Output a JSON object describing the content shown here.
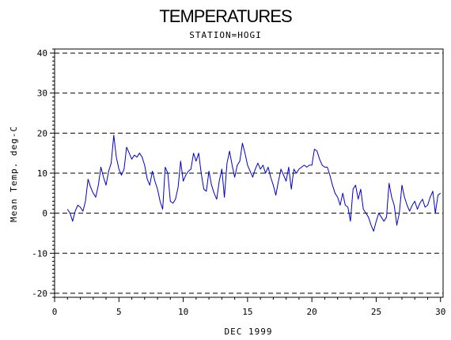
{
  "chart_data": {
    "type": "line",
    "title": "TEMPERATURES",
    "subtitle": "STATION=HOGI",
    "xlabel": "DEC 1999",
    "ylabel": "Mean Temp. deg-C",
    "xlim": [
      0,
      30.2
    ],
    "ylim": [
      -21,
      41
    ],
    "xticks": [
      0,
      5,
      10,
      15,
      20,
      25,
      30
    ],
    "yticks": [
      -20,
      -10,
      0,
      10,
      20,
      30,
      40
    ],
    "grid": "horizontal dashed at major y ticks",
    "colors": {
      "series": "#0000cc",
      "axis": "#000000",
      "grid": "#000000"
    },
    "series": [
      {
        "values": [
          [
            1.0,
            1.0
          ],
          [
            1.2,
            0.0
          ],
          [
            1.4,
            -2.0
          ],
          [
            1.6,
            0.5
          ],
          [
            1.8,
            2.0
          ],
          [
            2.0,
            1.5
          ],
          [
            2.2,
            0.5
          ],
          [
            2.4,
            3.0
          ],
          [
            2.6,
            8.5
          ],
          [
            2.8,
            6.5
          ],
          [
            3.0,
            5.0
          ],
          [
            3.2,
            4.0
          ],
          [
            3.4,
            7.0
          ],
          [
            3.6,
            11.5
          ],
          [
            3.8,
            9.0
          ],
          [
            4.0,
            7.0
          ],
          [
            4.2,
            10.5
          ],
          [
            4.4,
            12.5
          ],
          [
            4.6,
            19.5
          ],
          [
            4.8,
            14.0
          ],
          [
            5.0,
            11.0
          ],
          [
            5.2,
            9.5
          ],
          [
            5.4,
            11.0
          ],
          [
            5.6,
            16.5
          ],
          [
            5.8,
            15.0
          ],
          [
            6.0,
            13.5
          ],
          [
            6.2,
            14.5
          ],
          [
            6.4,
            14.0
          ],
          [
            6.6,
            15.0
          ],
          [
            6.8,
            14.0
          ],
          [
            7.0,
            12.0
          ],
          [
            7.2,
            8.5
          ],
          [
            7.4,
            7.0
          ],
          [
            7.6,
            10.5
          ],
          [
            7.8,
            8.0
          ],
          [
            8.0,
            6.0
          ],
          [
            8.2,
            3.0
          ],
          [
            8.4,
            1.0
          ],
          [
            8.6,
            11.5
          ],
          [
            8.8,
            10.0
          ],
          [
            9.0,
            3.0
          ],
          [
            9.2,
            2.5
          ],
          [
            9.4,
            3.5
          ],
          [
            9.6,
            6.5
          ],
          [
            9.8,
            13.0
          ],
          [
            10.0,
            8.0
          ],
          [
            10.2,
            9.5
          ],
          [
            10.4,
            10.5
          ],
          [
            10.6,
            11.0
          ],
          [
            10.8,
            15.0
          ],
          [
            11.0,
            13.0
          ],
          [
            11.2,
            15.0
          ],
          [
            11.4,
            10.0
          ],
          [
            11.6,
            6.0
          ],
          [
            11.8,
            5.5
          ],
          [
            12.0,
            10.5
          ],
          [
            12.2,
            7.0
          ],
          [
            12.4,
            5.0
          ],
          [
            12.6,
            3.5
          ],
          [
            12.8,
            8.0
          ],
          [
            13.0,
            11.0
          ],
          [
            13.2,
            4.0
          ],
          [
            13.4,
            12.5
          ],
          [
            13.6,
            15.5
          ],
          [
            13.8,
            12.0
          ],
          [
            14.0,
            9.0
          ],
          [
            14.2,
            12.0
          ],
          [
            14.4,
            13.0
          ],
          [
            14.6,
            17.5
          ],
          [
            14.8,
            15.0
          ],
          [
            15.0,
            12.0
          ],
          [
            15.2,
            10.5
          ],
          [
            15.4,
            9.0
          ],
          [
            15.6,
            11.0
          ],
          [
            15.8,
            12.5
          ],
          [
            16.0,
            11.0
          ],
          [
            16.2,
            12.0
          ],
          [
            16.4,
            10.0
          ],
          [
            16.6,
            11.5
          ],
          [
            16.8,
            9.0
          ],
          [
            17.0,
            7.0
          ],
          [
            17.2,
            4.5
          ],
          [
            17.4,
            8.0
          ],
          [
            17.6,
            11.0
          ],
          [
            17.8,
            9.5
          ],
          [
            18.0,
            8.0
          ],
          [
            18.2,
            11.5
          ],
          [
            18.4,
            6.0
          ],
          [
            18.6,
            11.0
          ],
          [
            18.8,
            10.0
          ],
          [
            19.0,
            11.0
          ],
          [
            19.2,
            11.5
          ],
          [
            19.4,
            12.0
          ],
          [
            19.6,
            11.5
          ],
          [
            19.8,
            12.0
          ],
          [
            20.0,
            12.0
          ],
          [
            20.2,
            16.0
          ],
          [
            20.4,
            15.5
          ],
          [
            20.6,
            13.5
          ],
          [
            20.8,
            12.0
          ],
          [
            21.0,
            11.5
          ],
          [
            21.2,
            11.5
          ],
          [
            21.4,
            9.5
          ],
          [
            21.6,
            7.0
          ],
          [
            21.8,
            5.0
          ],
          [
            22.0,
            4.0
          ],
          [
            22.2,
            2.0
          ],
          [
            22.4,
            5.0
          ],
          [
            22.6,
            2.0
          ],
          [
            22.8,
            1.5
          ],
          [
            23.0,
            -2.0
          ],
          [
            23.2,
            6.0
          ],
          [
            23.4,
            7.0
          ],
          [
            23.6,
            3.5
          ],
          [
            23.8,
            6.0
          ],
          [
            24.0,
            1.0
          ],
          [
            24.2,
            0.0
          ],
          [
            24.4,
            -1.0
          ],
          [
            24.6,
            -3.0
          ],
          [
            24.8,
            -4.5
          ],
          [
            25.0,
            -2.0
          ],
          [
            25.2,
            0.0
          ],
          [
            25.4,
            -1.0
          ],
          [
            25.6,
            -2.0
          ],
          [
            25.8,
            -1.0
          ],
          [
            26.0,
            7.5
          ],
          [
            26.2,
            4.0
          ],
          [
            26.4,
            2.0
          ],
          [
            26.6,
            -3.0
          ],
          [
            26.8,
            0.0
          ],
          [
            27.0,
            7.0
          ],
          [
            27.2,
            4.0
          ],
          [
            27.4,
            2.0
          ],
          [
            27.6,
            0.5
          ],
          [
            27.8,
            2.0
          ],
          [
            28.0,
            3.0
          ],
          [
            28.2,
            1.0
          ],
          [
            28.4,
            2.5
          ],
          [
            28.6,
            3.5
          ],
          [
            28.8,
            1.5
          ],
          [
            29.0,
            2.0
          ],
          [
            29.2,
            4.0
          ],
          [
            29.4,
            5.5
          ],
          [
            29.6,
            0.0
          ],
          [
            29.8,
            4.5
          ],
          [
            30.0,
            5.0
          ]
        ]
      }
    ]
  }
}
